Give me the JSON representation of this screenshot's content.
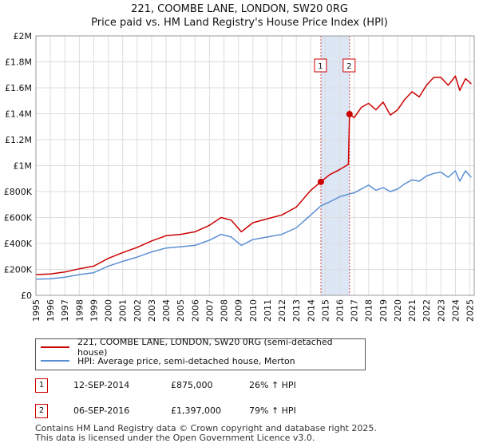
{
  "title_line1": "221, COOMBE LANE, LONDON, SW20 0RG",
  "title_line2": "Price paid vs. HM Land Registry's House Price Index (HPI)",
  "colors": {
    "property": "#cc0000",
    "hpi": "#5b8fd4",
    "shade": "#dce6f5",
    "grid": "#dddddd"
  },
  "chart_data": {
    "type": "line",
    "title": "221, COOMBE LANE, LONDON, SW20 0RG — Price paid vs. HM Land Registry's House Price Index (HPI)",
    "xlim": [
      1995,
      2025.3
    ],
    "ylim": [
      0,
      2000000
    ],
    "x_ticks": [
      "1995",
      "1996",
      "1997",
      "1998",
      "1999",
      "2000",
      "2001",
      "2002",
      "2003",
      "2004",
      "2005",
      "2006",
      "2007",
      "2008",
      "2009",
      "2010",
      "2011",
      "2012",
      "2013",
      "2014",
      "2015",
      "2016",
      "2017",
      "2018",
      "2019",
      "2020",
      "2021",
      "2022",
      "2023",
      "2024",
      "2025"
    ],
    "y_ticks": [
      {
        "value": 0,
        "label": "£0"
      },
      {
        "value": 200000,
        "label": "£200K"
      },
      {
        "value": 400000,
        "label": "£400K"
      },
      {
        "value": 600000,
        "label": "£600K"
      },
      {
        "value": 800000,
        "label": "£800K"
      },
      {
        "value": 1000000,
        "label": "£1M"
      },
      {
        "value": 1200000,
        "label": "£1.2M"
      },
      {
        "value": 1400000,
        "label": "£1.4M"
      },
      {
        "value": 1600000,
        "label": "£1.6M"
      },
      {
        "value": 1800000,
        "label": "£1.8M"
      },
      {
        "value": 2000000,
        "label": "£2M"
      }
    ],
    "series": [
      {
        "name": "221, COOMBE LANE, LONDON, SW20 0RG (semi-detached house)",
        "color": "#cc0000",
        "x": [
          1995,
          1996,
          1997,
          1998,
          1999,
          2000,
          2001,
          2002,
          2003,
          2004,
          2005,
          2006,
          2007,
          2007.8,
          2008.5,
          2009.2,
          2010,
          2011,
          2012,
          2013,
          2014,
          2014.7,
          2015.3,
          2016,
          2016.6,
          2016.68,
          2017,
          2017.5,
          2018,
          2018.5,
          2019,
          2019.5,
          2020,
          2020.5,
          2021,
          2021.5,
          2022,
          2022.5,
          2023,
          2023.5,
          2024,
          2024.3,
          2024.7,
          2025.1
        ],
        "y": [
          160000,
          165000,
          180000,
          205000,
          225000,
          285000,
          330000,
          370000,
          420000,
          460000,
          470000,
          490000,
          540000,
          600000,
          580000,
          490000,
          560000,
          590000,
          620000,
          680000,
          810000,
          875000,
          930000,
          970000,
          1010000,
          1397000,
          1370000,
          1450000,
          1480000,
          1430000,
          1490000,
          1390000,
          1430000,
          1510000,
          1570000,
          1530000,
          1620000,
          1680000,
          1680000,
          1620000,
          1690000,
          1580000,
          1670000,
          1630000
        ]
      },
      {
        "name": "HPI: Average price, semi-detached house, Merton",
        "color": "#5b8fd4",
        "x": [
          1995,
          1996,
          1997,
          1998,
          1999,
          2000,
          2001,
          2002,
          2003,
          2004,
          2005,
          2006,
          2007,
          2007.8,
          2008.5,
          2009.2,
          2010,
          2011,
          2012,
          2013,
          2014,
          2014.7,
          2015.3,
          2016,
          2016.6,
          2017,
          2017.5,
          2018,
          2018.5,
          2019,
          2019.5,
          2020,
          2020.5,
          2021,
          2021.5,
          2022,
          2022.5,
          2023,
          2023.5,
          2024,
          2024.3,
          2024.7,
          2025.1
        ],
        "y": [
          125000,
          128000,
          140000,
          160000,
          175000,
          225000,
          262000,
          295000,
          335000,
          365000,
          375000,
          385000,
          425000,
          470000,
          450000,
          385000,
          430000,
          450000,
          470000,
          520000,
          620000,
          690000,
          720000,
          760000,
          780000,
          790000,
          820000,
          850000,
          810000,
          830000,
          800000,
          820000,
          860000,
          890000,
          880000,
          920000,
          940000,
          950000,
          910000,
          960000,
          880000,
          960000,
          910000
        ]
      }
    ],
    "sales": [
      {
        "id": "1",
        "x": 2014.7,
        "y": 875000
      },
      {
        "id": "2",
        "x": 2016.68,
        "y": 1397000
      }
    ],
    "shaded_range": [
      2014.7,
      2016.68
    ],
    "legend_position": "below"
  },
  "legend": [
    {
      "label": "221, COOMBE LANE, LONDON, SW20 0RG (semi-detached house)",
      "color": "#cc0000"
    },
    {
      "label": "HPI: Average price, semi-detached house, Merton",
      "color": "#5b8fd4"
    }
  ],
  "transactions": [
    {
      "id": "1",
      "date": "12-SEP-2014",
      "price": "£875,000",
      "hpi": "26% ↑ HPI"
    },
    {
      "id": "2",
      "date": "06-SEP-2016",
      "price": "£1,397,000",
      "hpi": "79% ↑ HPI"
    }
  ],
  "footer_line1": "Contains HM Land Registry data © Crown copyright and database right 2025.",
  "footer_line2": "This data is licensed under the Open Government Licence v3.0."
}
